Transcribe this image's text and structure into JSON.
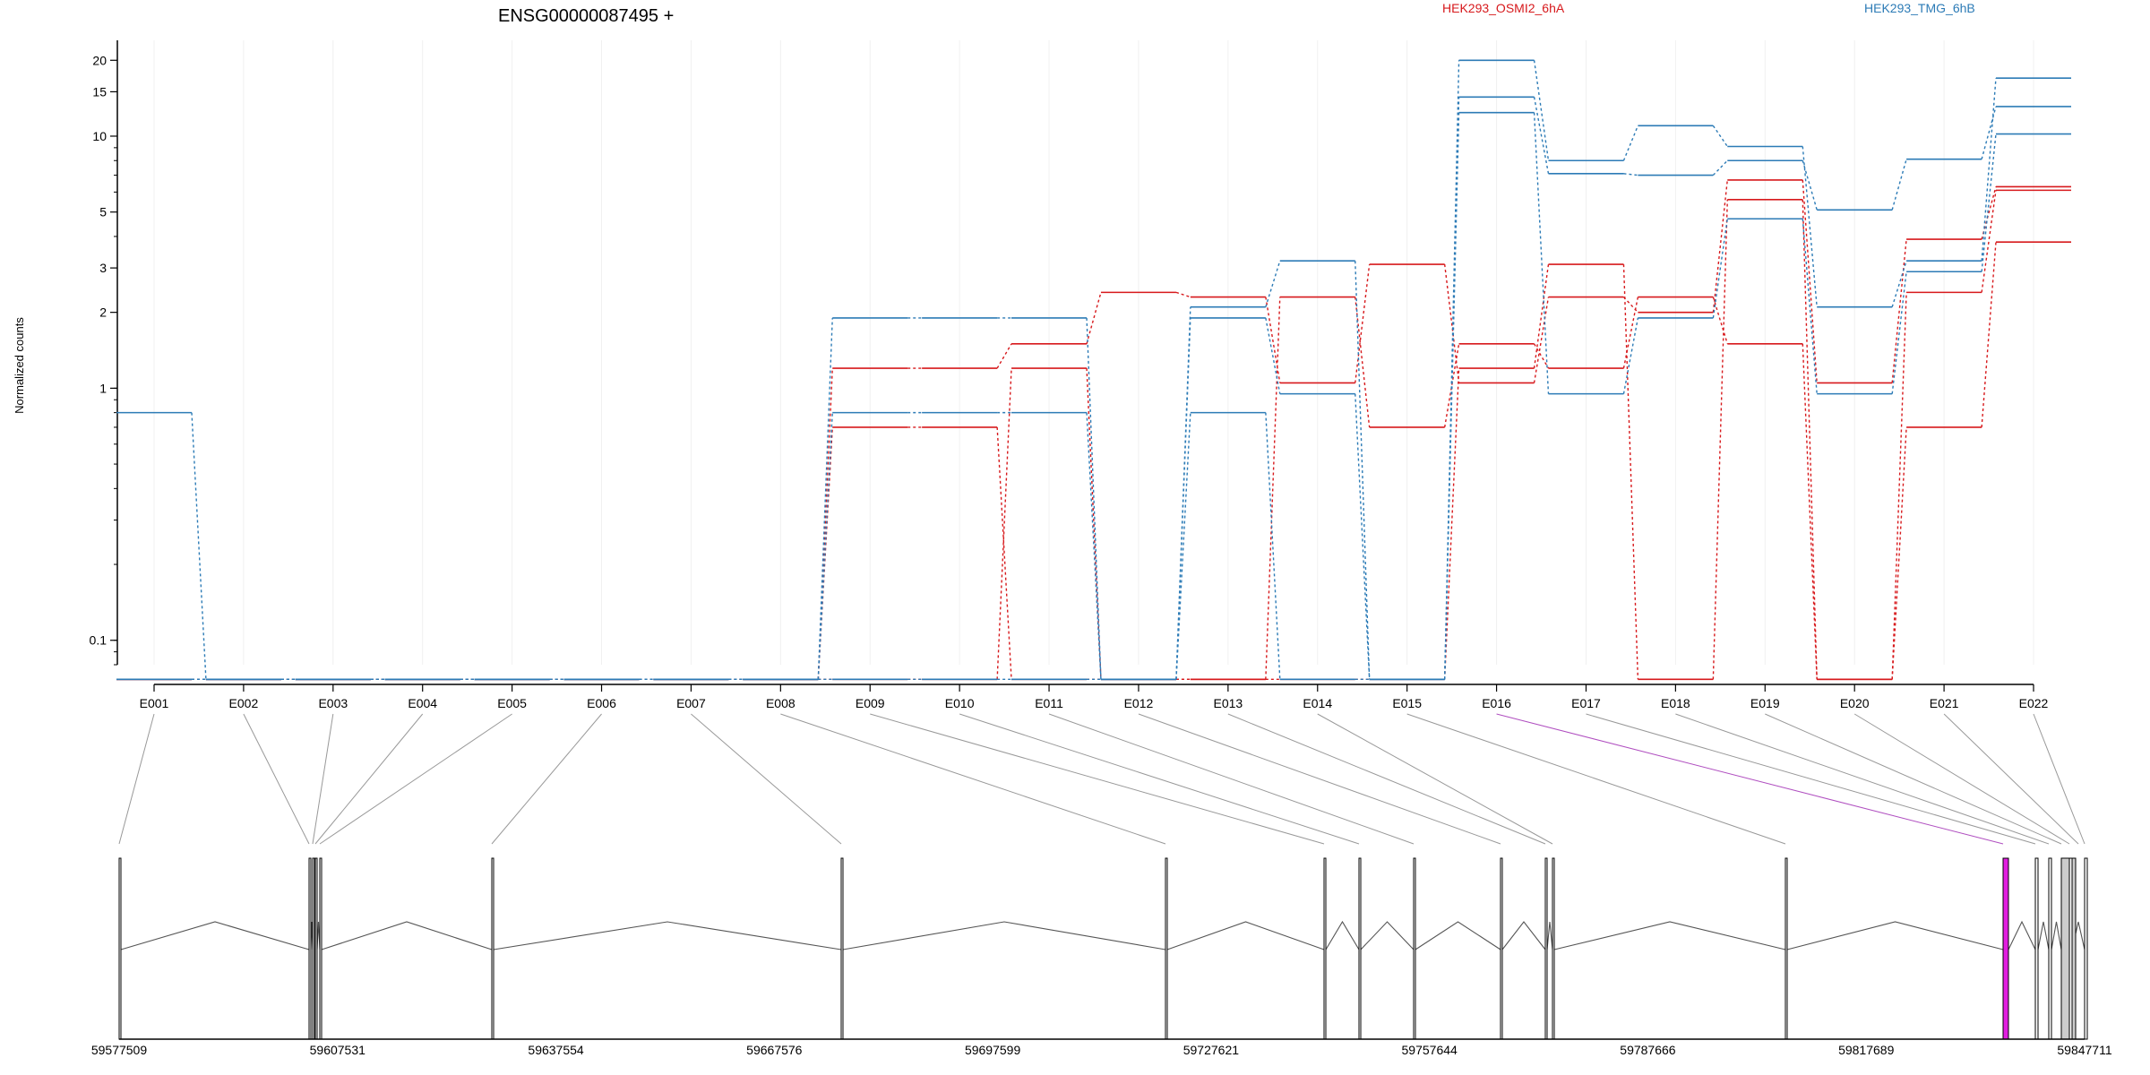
{
  "chart_data": {
    "type": "line",
    "title": "ENSG00000087495 +",
    "ylabel": "Normalized counts",
    "yscale": "log",
    "ylim": [
      0.08,
      24
    ],
    "ytick_labels": [
      "0.1",
      "1",
      "2",
      "3",
      "5",
      "10",
      "15",
      "20"
    ],
    "ytick_values": [
      0.1,
      1,
      2,
      3,
      5,
      10,
      15,
      20
    ],
    "grid": true,
    "categories": [
      "E001",
      "E002",
      "E003",
      "E004",
      "E005",
      "E006",
      "E007",
      "E008",
      "E009",
      "E010",
      "E011",
      "E012",
      "E013",
      "E014",
      "E015",
      "E016",
      "E017",
      "E018",
      "E019",
      "E020",
      "E021",
      "E022"
    ],
    "legend": [
      {
        "name": "HEK293_OSMI2_6hA",
        "color": "#d7191c"
      },
      {
        "name": "HEK293_TMG_6hB",
        "color": "#2c7bb6"
      }
    ],
    "series": [
      {
        "group": "HEK293_OSMI2_6hA",
        "color": "#d7191c",
        "values": [
          0.07,
          0.07,
          0.07,
          0.07,
          0.07,
          0.07,
          0.07,
          0.07,
          1.2,
          1.2,
          1.5,
          2.4,
          2.3,
          1.05,
          3.1,
          1.05,
          2.3,
          2.0,
          6.7,
          1.05,
          3.9,
          6.3
        ]
      },
      {
        "group": "HEK293_OSMI2_6hA",
        "color": "#d7191c",
        "values": [
          0.07,
          0.07,
          0.07,
          0.07,
          0.07,
          0.07,
          0.07,
          0.07,
          0.07,
          0.07,
          1.2,
          0.07,
          0.07,
          2.3,
          0.7,
          1.5,
          1.2,
          2.3,
          1.5,
          0.07,
          0.7,
          3.8
        ]
      },
      {
        "group": "HEK293_OSMI2_6hA",
        "color": "#d7191c",
        "values": [
          0.07,
          0.07,
          0.07,
          0.07,
          0.07,
          0.07,
          0.07,
          0.07,
          0.7,
          0.7,
          0.07,
          0.07,
          0.07,
          0.07,
          0.07,
          1.2,
          3.1,
          0.07,
          5.6,
          0.07,
          2.4,
          6.1
        ]
      },
      {
        "group": "HEK293_TMG_6hB",
        "color": "#2c7bb6",
        "values": [
          0.8,
          0.07,
          0.07,
          0.07,
          0.07,
          0.07,
          0.07,
          0.07,
          1.9,
          1.9,
          1.9,
          0.07,
          2.1,
          3.2,
          0.07,
          20.0,
          8.0,
          11.0,
          9.1,
          2.1,
          3.2,
          17.0
        ]
      },
      {
        "group": "HEK293_TMG_6hB",
        "color": "#2c7bb6",
        "values": [
          0.07,
          0.07,
          0.07,
          0.07,
          0.07,
          0.07,
          0.07,
          0.07,
          0.8,
          0.8,
          0.8,
          0.07,
          1.9,
          0.95,
          0.07,
          14.3,
          7.1,
          7.0,
          8.0,
          5.1,
          8.1,
          13.1
        ]
      },
      {
        "group": "HEK293_TMG_6hB",
        "color": "#2c7bb6",
        "values": [
          0.07,
          0.07,
          0.07,
          0.07,
          0.07,
          0.07,
          0.07,
          0.07,
          0.07,
          0.07,
          0.07,
          0.07,
          0.8,
          0.07,
          0.07,
          12.4,
          0.95,
          1.9,
          4.7,
          0.95,
          2.9,
          10.2
        ]
      }
    ]
  },
  "gene_model": {
    "coordinate_labels": [
      "59577509",
      "59607531",
      "59637554",
      "59667576",
      "59697599",
      "59727621",
      "59757644",
      "59787666",
      "59817689",
      "59847711"
    ],
    "highlight_color": "#e11de0",
    "highlighted_exon": "E016"
  }
}
